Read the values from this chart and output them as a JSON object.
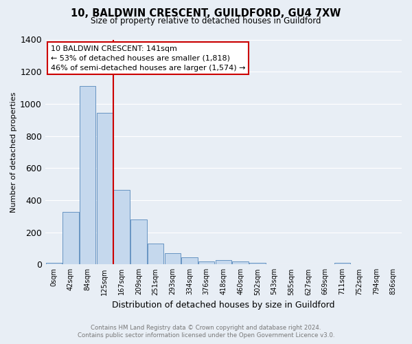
{
  "title": "10, BALDWIN CRESCENT, GUILDFORD, GU4 7XW",
  "subtitle": "Size of property relative to detached houses in Guildford",
  "xlabel": "Distribution of detached houses by size in Guildford",
  "ylabel": "Number of detached properties",
  "bar_labels": [
    "0sqm",
    "42sqm",
    "84sqm",
    "125sqm",
    "167sqm",
    "209sqm",
    "251sqm",
    "293sqm",
    "334sqm",
    "376sqm",
    "418sqm",
    "460sqm",
    "502sqm",
    "543sqm",
    "585sqm",
    "627sqm",
    "669sqm",
    "711sqm",
    "752sqm",
    "794sqm",
    "836sqm"
  ],
  "bar_values": [
    10,
    325,
    1110,
    945,
    465,
    278,
    128,
    68,
    45,
    18,
    25,
    20,
    10,
    0,
    0,
    0,
    0,
    12,
    0,
    0,
    0
  ],
  "bar_color": "#c5d8ed",
  "bar_edge_color": "#5588bb",
  "ylim": [
    0,
    1400
  ],
  "yticks": [
    0,
    200,
    400,
    600,
    800,
    1000,
    1200,
    1400
  ],
  "vline_x": 3.5,
  "vline_color": "#cc0000",
  "annotation_title": "10 BALDWIN CRESCENT: 141sqm",
  "annotation_line1": "← 53% of detached houses are smaller (1,818)",
  "annotation_line2": "46% of semi-detached houses are larger (1,574) →",
  "annotation_box_facecolor": "#ffffff",
  "annotation_box_edgecolor": "#cc0000",
  "bg_color": "#e8eef5",
  "grid_color": "#ffffff",
  "footer_line1": "Contains HM Land Registry data © Crown copyright and database right 2024.",
  "footer_line2": "Contains public sector information licensed under the Open Government Licence v3.0."
}
